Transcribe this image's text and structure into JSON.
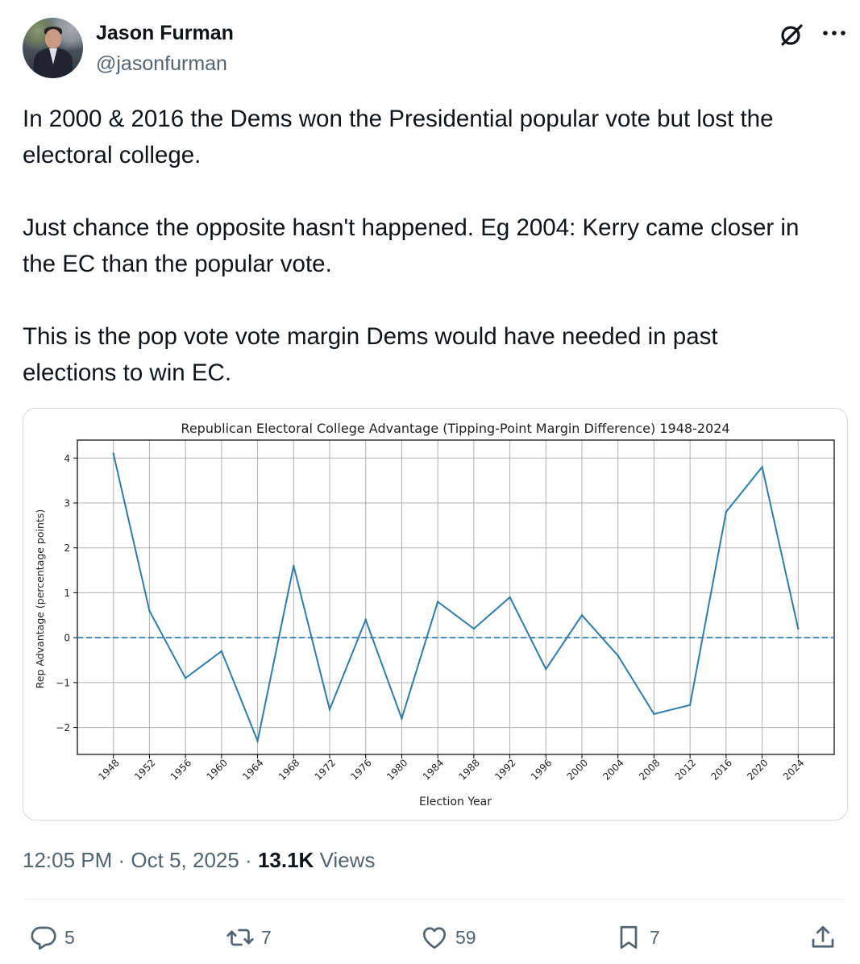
{
  "author": {
    "name": "Jason Furman",
    "handle": "@jasonfurman"
  },
  "tweet": {
    "lines": [
      "In 2000 & 2016 the Dems won the Presidential popular vote but lost the",
      "electoral college.",
      "",
      "Just chance the opposite hasn't happened. Eg 2004: Kerry came closer in",
      "the EC than the popular vote.",
      "",
      "This is the pop vote vote margin Dems would have needed in past",
      "elections to win EC."
    ]
  },
  "chart_data": {
    "type": "line",
    "title": "Republican Electoral College Advantage (Tipping-Point Margin Difference) 1948-2024",
    "xlabel": "Election Year",
    "ylabel": "Rep Advantage (percentage points)",
    "x": [
      "1948",
      "1952",
      "1956",
      "1960",
      "1964",
      "1968",
      "1972",
      "1976",
      "1980",
      "1984",
      "1988",
      "1992",
      "1996",
      "2000",
      "2004",
      "2008",
      "2012",
      "2016",
      "2020",
      "2024"
    ],
    "series": [
      {
        "values": [
          4.1,
          0.6,
          -0.9,
          -0.3,
          -2.3,
          1.6,
          -1.6,
          0.4,
          -1.8,
          0.8,
          0.2,
          0.9,
          -0.7,
          0.5,
          -0.4,
          -1.7,
          -1.5,
          2.8,
          3.8,
          0.2
        ]
      }
    ],
    "yticks": [
      "4",
      "3",
      "2",
      "1",
      "0",
      "−1",
      "−2"
    ],
    "ylim": [
      -2.6,
      4.4
    ],
    "reference_line": {
      "y": 0,
      "style": "dashed"
    },
    "grid": true,
    "line_color": "#2f7ca8"
  },
  "meta": {
    "time": "12:05 PM",
    "date": "Oct 5, 2025",
    "views_count": "13.1K",
    "views_label": "Views",
    "sep": " · "
  },
  "actions": {
    "replies": "5",
    "reposts": "7",
    "likes": "59",
    "bookmarks": "7"
  }
}
